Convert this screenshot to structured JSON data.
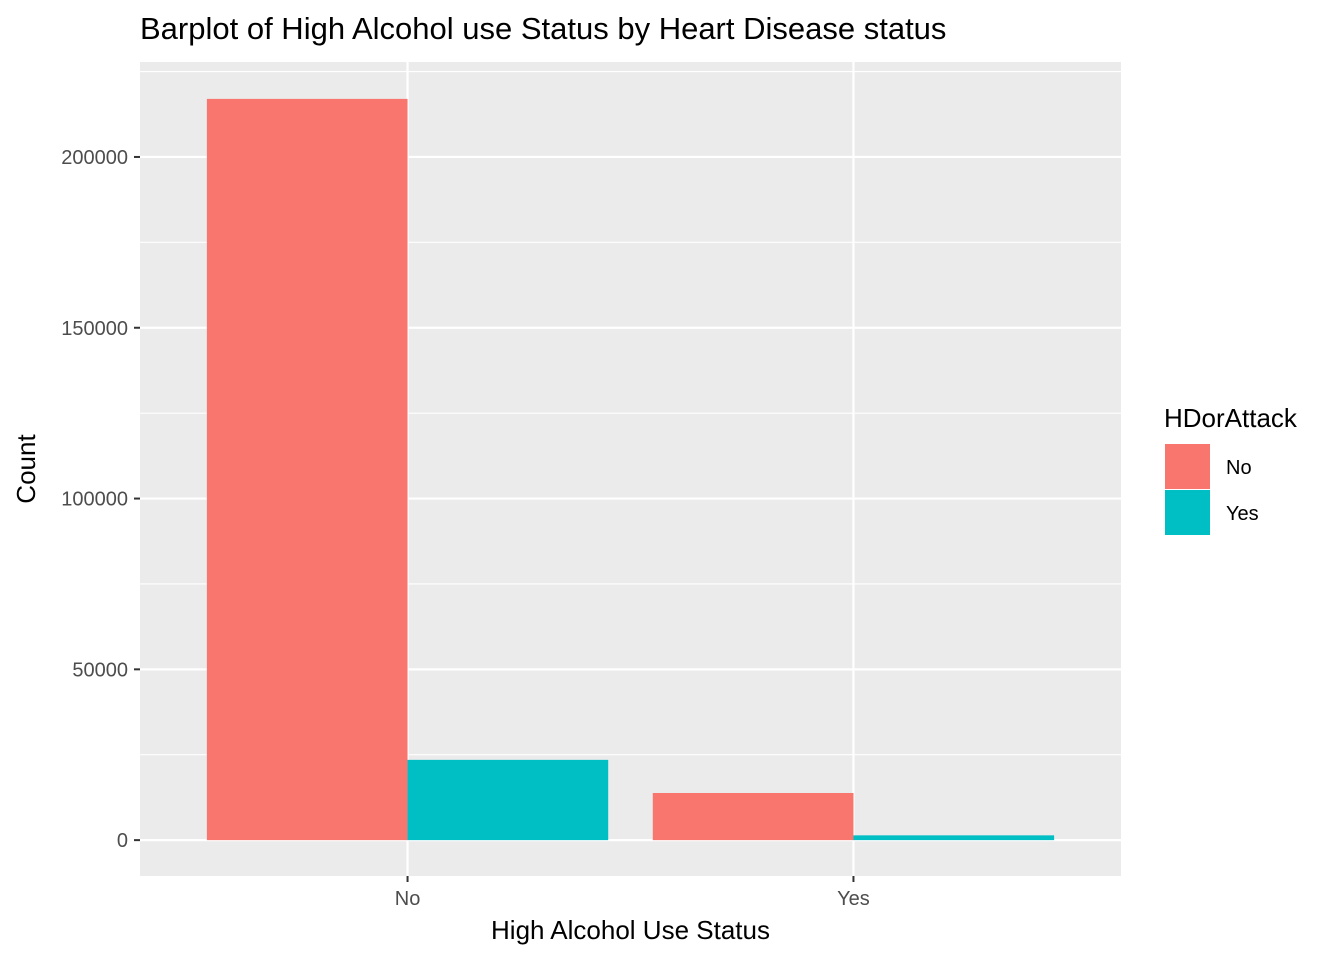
{
  "chart_data": {
    "type": "bar",
    "title": "Barplot of High Alcohol use Status by Heart Disease status",
    "xlabel": "High Alcohol Use Status",
    "ylabel": "Count",
    "categories": [
      "No",
      "Yes"
    ],
    "series": [
      {
        "name": "No",
        "values": [
          217000,
          13800
        ],
        "color": "#F8766D"
      },
      {
        "name": "Yes",
        "values": [
          23500,
          1400
        ],
        "color": "#00BFC4"
      }
    ],
    "yticks": [
      0,
      50000,
      100000,
      150000,
      200000
    ],
    "ytick_labels": [
      "0",
      "50000",
      "100000",
      "150000",
      "200000"
    ],
    "ylim": [
      -10500,
      227800
    ],
    "grid": true,
    "legend": {
      "title": "HDorAttack",
      "position": "right"
    }
  }
}
